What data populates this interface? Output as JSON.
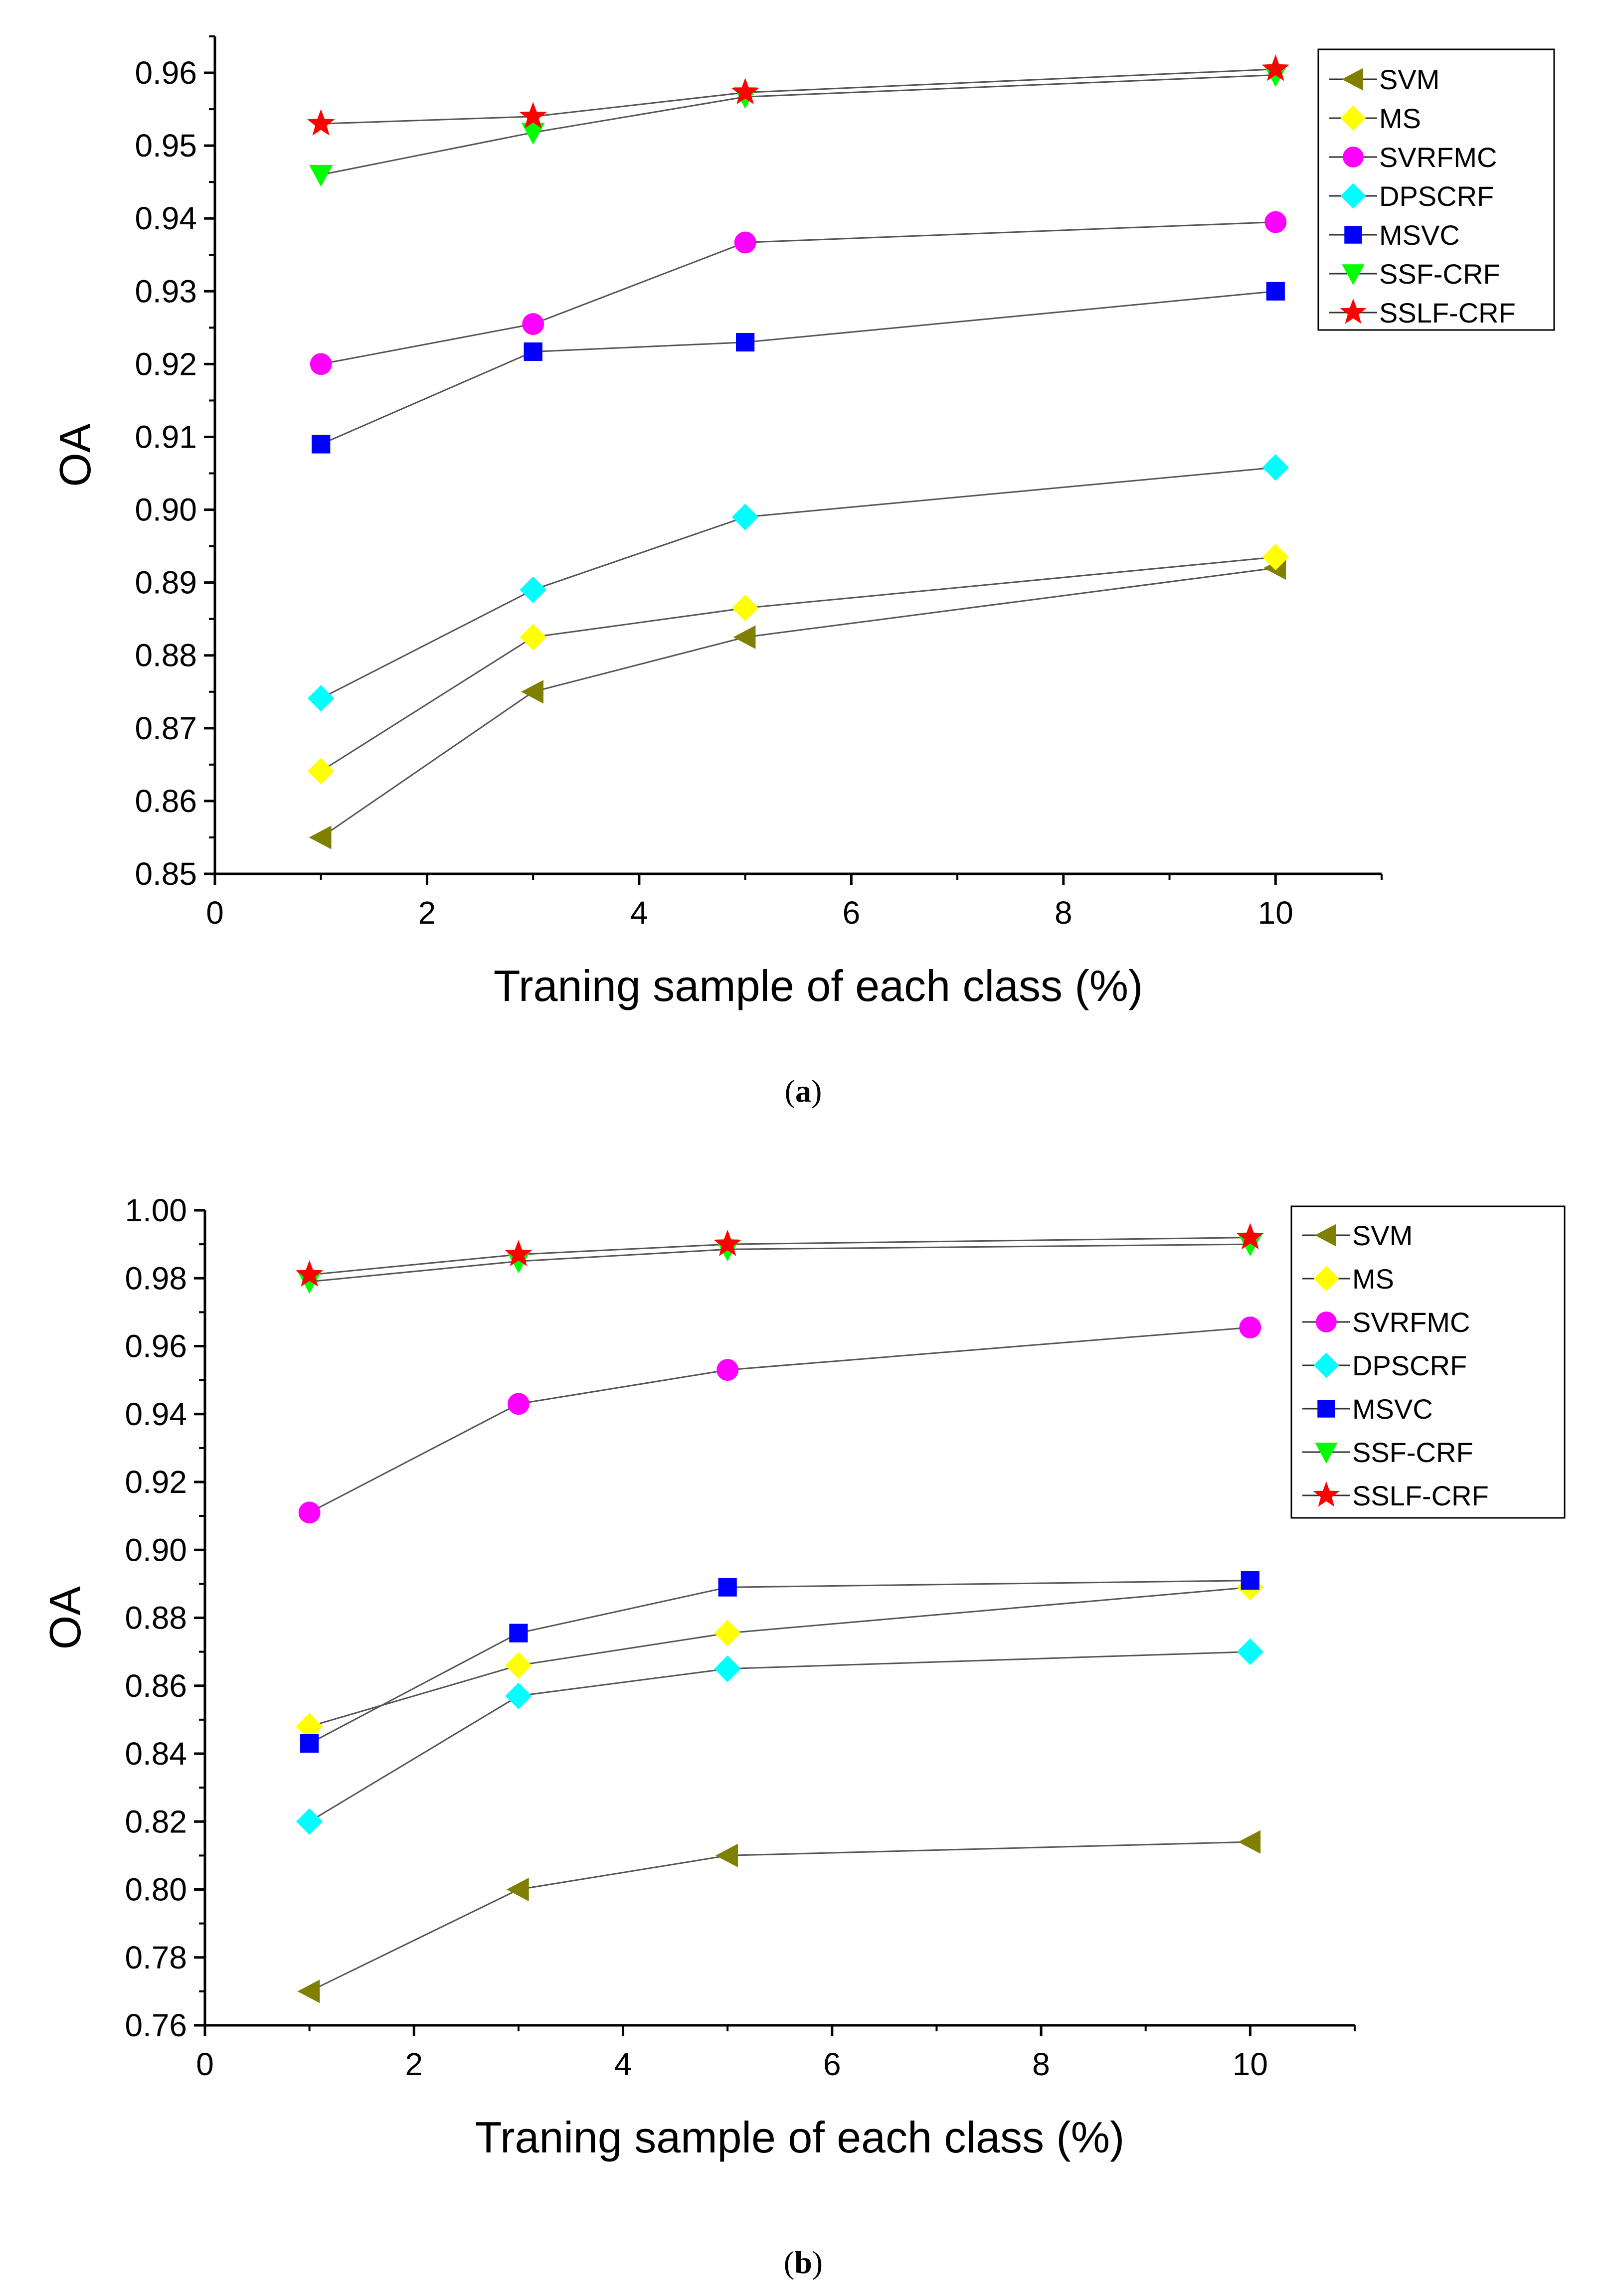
{
  "chart_data": [
    {
      "type": "line",
      "caption_letter": "a",
      "title": "",
      "xlabel": "Traning sample of each class (%)",
      "ylabel": "OA",
      "xlim": [
        0,
        11
      ],
      "ylim": [
        0.85,
        0.965
      ],
      "xticks": [
        0,
        2,
        4,
        6,
        8,
        10
      ],
      "xtick_labels": [
        "0",
        "2",
        "4",
        "6",
        "8",
        "10"
      ],
      "yticks": [
        0.85,
        0.86,
        0.87,
        0.88,
        0.89,
        0.9,
        0.91,
        0.92,
        0.93,
        0.94,
        0.95,
        0.96
      ],
      "ytick_labels": [
        "0.85",
        "0.86",
        "0.87",
        "0.88",
        "0.89",
        "0.90",
        "0.91",
        "0.92",
        "0.93",
        "0.94",
        "0.95",
        "0.96"
      ],
      "legend_position": "top-right",
      "x": [
        1,
        3,
        5,
        10
      ],
      "series": [
        {
          "name": "SVM",
          "values": [
            0.855,
            0.875,
            0.8825,
            0.892
          ],
          "marker": "triangle-left",
          "color": "#808000"
        },
        {
          "name": "MS",
          "values": [
            0.8641,
            0.8825,
            0.8865,
            0.8935
          ],
          "marker": "diamond",
          "color": "#FFFF00"
        },
        {
          "name": "SVRFMC",
          "values": [
            0.92,
            0.9255,
            0.9367,
            0.9395
          ],
          "marker": "circle",
          "color": "#FF00FF"
        },
        {
          "name": "DPSCRF",
          "values": [
            0.8741,
            0.889,
            0.899,
            0.9058
          ],
          "marker": "diamond",
          "color": "#00FFFF"
        },
        {
          "name": "MSVC",
          "values": [
            0.909,
            0.9217,
            0.923,
            0.93
          ],
          "marker": "square",
          "color": "#0000FF"
        },
        {
          "name": "SSF-CRF",
          "values": [
            0.946,
            0.9518,
            0.9567,
            0.9597
          ],
          "marker": "triangle-down",
          "color": "#00FF00"
        },
        {
          "name": "SSLF-CRF",
          "values": [
            0.953,
            0.954,
            0.9573,
            0.9605
          ],
          "marker": "star",
          "color": "#FF0000"
        }
      ]
    },
    {
      "type": "line",
      "caption_letter": "b",
      "title": "",
      "xlabel": "Traning sample of each class (%)",
      "ylabel": "OA",
      "xlim": [
        0,
        11
      ],
      "ylim": [
        0.76,
        1.0
      ],
      "xticks": [
        0,
        2,
        4,
        6,
        8,
        10
      ],
      "xtick_labels": [
        "0",
        "2",
        "4",
        "6",
        "8",
        "10"
      ],
      "yticks": [
        0.76,
        0.78,
        0.8,
        0.82,
        0.84,
        0.86,
        0.88,
        0.9,
        0.92,
        0.94,
        0.96,
        0.98,
        1.0
      ],
      "ytick_labels": [
        "0.76",
        "0.78",
        "0.80",
        "0.82",
        "0.84",
        "0.86",
        "0.88",
        "0.90",
        "0.92",
        "0.94",
        "0.96",
        "0.98",
        "1.00"
      ],
      "legend_position": "top-right",
      "x": [
        1,
        3,
        5,
        10
      ],
      "series": [
        {
          "name": "SVM",
          "values": [
            0.77,
            0.8,
            0.81,
            0.814
          ],
          "marker": "triangle-left",
          "color": "#808000"
        },
        {
          "name": "MS",
          "values": [
            0.848,
            0.866,
            0.8755,
            0.889
          ],
          "marker": "diamond",
          "color": "#FFFF00"
        },
        {
          "name": "SVRFMC",
          "values": [
            0.911,
            0.943,
            0.953,
            0.9655
          ],
          "marker": "circle",
          "color": "#FF00FF"
        },
        {
          "name": "DPSCRF",
          "values": [
            0.82,
            0.857,
            0.865,
            0.87
          ],
          "marker": "diamond",
          "color": "#00FFFF"
        },
        {
          "name": "MSVC",
          "values": [
            0.843,
            0.8755,
            0.889,
            0.891
          ],
          "marker": "square",
          "color": "#0000FF"
        },
        {
          "name": "SSF-CRF",
          "values": [
            0.979,
            0.985,
            0.9885,
            0.99
          ],
          "marker": "triangle-down",
          "color": "#00FF00"
        },
        {
          "name": "SSLF-CRF",
          "values": [
            0.981,
            0.987,
            0.99,
            0.992
          ],
          "marker": "star",
          "color": "#FF0000"
        }
      ]
    }
  ]
}
